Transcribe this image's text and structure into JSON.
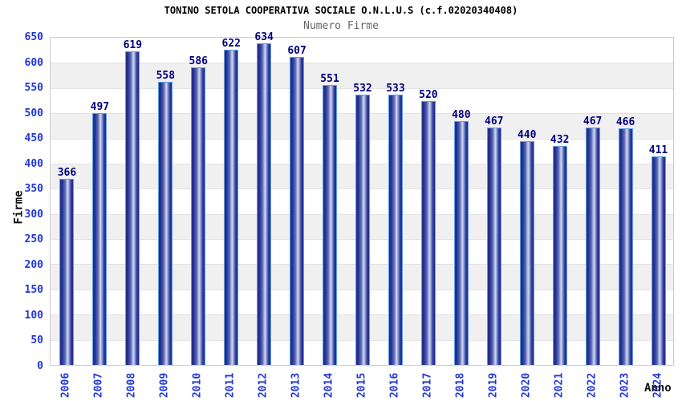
{
  "chart_data": {
    "type": "bar",
    "title": "TONINO SETOLA COOPERATIVA SOCIALE O.N.L.U.S (c.f.02020340408)",
    "subtitle": "Numero Firme",
    "xlabel": "Anno",
    "ylabel": "Firme",
    "categories": [
      "2006",
      "2007",
      "2008",
      "2009",
      "2010",
      "2011",
      "2012",
      "2013",
      "2014",
      "2015",
      "2016",
      "2017",
      "2018",
      "2019",
      "2020",
      "2021",
      "2022",
      "2023",
      "2024"
    ],
    "values": [
      366,
      497,
      619,
      558,
      586,
      622,
      634,
      607,
      551,
      532,
      533,
      520,
      480,
      467,
      440,
      432,
      467,
      466,
      411
    ],
    "ylim": [
      0,
      650
    ],
    "ytick_step": 50,
    "grid": true,
    "legend_position": "none",
    "colors": {
      "bar_dark": "#1e2b8e",
      "bar_highlight": "#d2d8f0",
      "bar_border": "#5f9ee3",
      "value_label": "#000080",
      "tick_label_blue": "#2136d9",
      "axis_title": "#111111",
      "subtitle_gray": "#666666",
      "band_gray": "#f0f0f0",
      "plot_border": "#cccccc"
    }
  }
}
